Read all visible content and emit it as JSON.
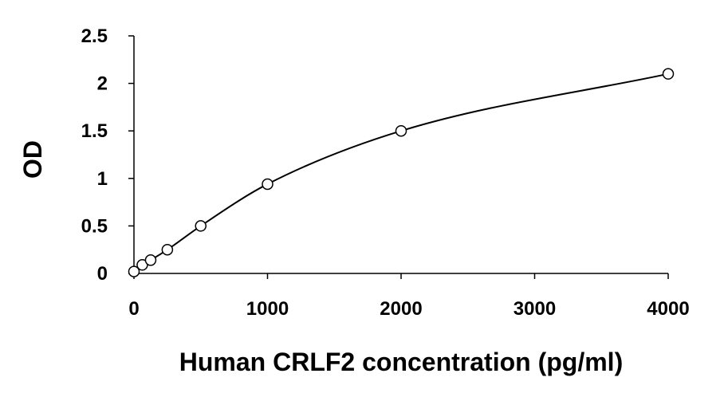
{
  "chart_data": {
    "type": "scatter",
    "title": "",
    "xlabel": "Human CRLF2 concentration (pg/ml)",
    "ylabel": "OD",
    "xlim": [
      0,
      4000
    ],
    "ylim": [
      0,
      2.5
    ],
    "xticks": [
      "0",
      "1000",
      "2000",
      "3000",
      "4000"
    ],
    "yticks": [
      "0",
      "0.5",
      "1",
      "1.5",
      "2",
      "2.5"
    ],
    "grid": false,
    "legend": "none",
    "series": [
      {
        "x": [
          0,
          62.5,
          125,
          250,
          500,
          1000,
          2000,
          4000
        ],
        "y": [
          0.02,
          0.09,
          0.14,
          0.25,
          0.5,
          0.94,
          1.5,
          2.1
        ],
        "marker": "open-circle",
        "trendline": "smooth-curve"
      }
    ]
  }
}
